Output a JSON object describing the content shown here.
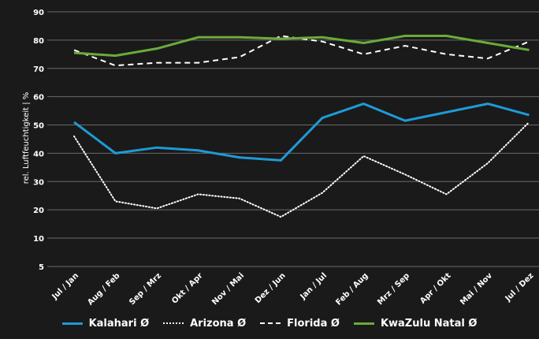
{
  "chart_data": {
    "type": "line",
    "ylabel": "rel. Luftfeuchtigkeit | %",
    "xlabel": "",
    "title": "",
    "categories": [
      "Jul / Jan",
      "Aug / Feb",
      "Sep / Mrz",
      "Okt / Apr",
      "Nov / Mai",
      "Dez / Jun",
      "Jan / Jul",
      "Feb / Aug",
      "Mrz / Sep",
      "Apr / Okt",
      "Mai / Nov",
      "Jul / Dez"
    ],
    "yticks": [
      5,
      10,
      20,
      30,
      40,
      50,
      60,
      70,
      80,
      90
    ],
    "ylim": [
      5,
      90
    ],
    "grid": true,
    "legend_position": "bottom",
    "series": [
      {
        "name": "Kalahari Ø",
        "color": "#1f9ad6",
        "style": "solid",
        "values": [
          51,
          40,
          42,
          41,
          38.5,
          37.5,
          52.5,
          57.5,
          51.5,
          54.5,
          57.5,
          53.5
        ]
      },
      {
        "name": "Arizona Ø",
        "color": "#ffffff",
        "style": "dotted",
        "values": [
          46,
          23,
          20.5,
          25.5,
          24,
          17.5,
          26,
          39,
          32.5,
          25.5,
          36.5,
          51
        ]
      },
      {
        "name": "Florida Ø",
        "color": "#ffffff",
        "style": "dashed",
        "values": [
          76.5,
          71,
          72,
          72,
          74,
          81.5,
          79.5,
          75,
          78,
          75,
          73.5,
          79.5
        ]
      },
      {
        "name": "KwaZulu Natal Ø",
        "color": "#6aab3a",
        "style": "solid",
        "values": [
          75.5,
          74.5,
          77,
          81,
          81,
          80.5,
          81,
          79,
          81.5,
          81.5,
          79,
          76.5
        ]
      }
    ]
  }
}
